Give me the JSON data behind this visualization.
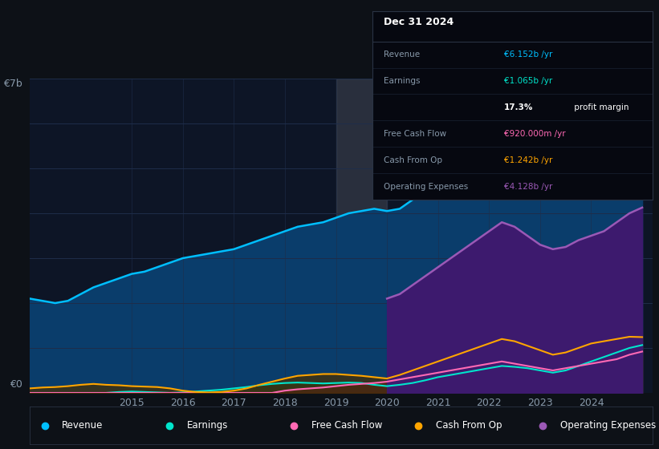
{
  "bg_color": "#0d1117",
  "plot_bg_color": "#0d1526",
  "grid_color": "#1e2d4a",
  "years": [
    2013.0,
    2013.25,
    2013.5,
    2013.75,
    2014.0,
    2014.25,
    2014.5,
    2014.75,
    2015.0,
    2015.25,
    2015.5,
    2015.75,
    2016.0,
    2016.25,
    2016.5,
    2016.75,
    2017.0,
    2017.25,
    2017.5,
    2017.75,
    2018.0,
    2018.25,
    2018.5,
    2018.75,
    2019.0,
    2019.25,
    2019.5,
    2019.75,
    2020.0,
    2020.25,
    2020.5,
    2020.75,
    2021.0,
    2021.25,
    2021.5,
    2021.75,
    2022.0,
    2022.25,
    2022.5,
    2022.75,
    2023.0,
    2023.25,
    2023.5,
    2023.75,
    2024.0,
    2024.25,
    2024.5,
    2024.75,
    2025.0
  ],
  "revenue": [
    2.1,
    2.05,
    2.0,
    2.05,
    2.2,
    2.35,
    2.45,
    2.55,
    2.65,
    2.7,
    2.8,
    2.9,
    3.0,
    3.05,
    3.1,
    3.15,
    3.2,
    3.3,
    3.4,
    3.5,
    3.6,
    3.7,
    3.75,
    3.8,
    3.9,
    4.0,
    4.05,
    4.1,
    4.05,
    4.1,
    4.3,
    4.5,
    4.7,
    4.9,
    5.1,
    5.3,
    5.6,
    5.8,
    5.75,
    5.5,
    5.3,
    5.2,
    5.25,
    5.4,
    5.5,
    5.7,
    5.9,
    6.1,
    6.152
  ],
  "earnings": [
    -0.05,
    -0.07,
    -0.08,
    -0.06,
    -0.04,
    -0.02,
    0.0,
    0.02,
    0.03,
    0.02,
    0.01,
    0.0,
    0.01,
    0.03,
    0.05,
    0.07,
    0.1,
    0.13,
    0.17,
    0.2,
    0.22,
    0.23,
    0.22,
    0.21,
    0.22,
    0.23,
    0.22,
    0.18,
    0.15,
    0.18,
    0.22,
    0.28,
    0.35,
    0.4,
    0.45,
    0.5,
    0.55,
    0.6,
    0.58,
    0.55,
    0.5,
    0.45,
    0.5,
    0.6,
    0.7,
    0.8,
    0.9,
    1.0,
    1.065
  ],
  "free_cash_flow": [
    0.0,
    0.0,
    0.0,
    0.0,
    0.0,
    0.0,
    0.0,
    0.0,
    0.0,
    0.0,
    0.0,
    0.0,
    0.0,
    0.0,
    0.0,
    0.0,
    0.0,
    0.0,
    0.0,
    0.0,
    0.05,
    0.08,
    0.1,
    0.12,
    0.15,
    0.18,
    0.2,
    0.22,
    0.25,
    0.3,
    0.35,
    0.4,
    0.45,
    0.5,
    0.55,
    0.6,
    0.65,
    0.7,
    0.65,
    0.6,
    0.55,
    0.5,
    0.55,
    0.6,
    0.65,
    0.7,
    0.75,
    0.85,
    0.92
  ],
  "cash_from_op": [
    0.1,
    0.12,
    0.13,
    0.15,
    0.18,
    0.2,
    0.18,
    0.17,
    0.15,
    0.14,
    0.13,
    0.1,
    0.05,
    0.02,
    0.01,
    0.02,
    0.05,
    0.1,
    0.18,
    0.25,
    0.32,
    0.38,
    0.4,
    0.42,
    0.42,
    0.4,
    0.38,
    0.35,
    0.32,
    0.4,
    0.5,
    0.6,
    0.7,
    0.8,
    0.9,
    1.0,
    1.1,
    1.2,
    1.15,
    1.05,
    0.95,
    0.85,
    0.9,
    1.0,
    1.1,
    1.15,
    1.2,
    1.25,
    1.242
  ],
  "op_expenses": [
    null,
    null,
    null,
    null,
    null,
    null,
    null,
    null,
    null,
    null,
    null,
    null,
    null,
    null,
    null,
    null,
    null,
    null,
    null,
    null,
    null,
    null,
    null,
    null,
    null,
    null,
    null,
    null,
    2.1,
    2.2,
    2.4,
    2.6,
    2.8,
    3.0,
    3.2,
    3.4,
    3.6,
    3.8,
    3.7,
    3.5,
    3.3,
    3.2,
    3.25,
    3.4,
    3.5,
    3.6,
    3.8,
    4.0,
    4.128
  ],
  "transition_start": 2019.0,
  "transition_end": 2020.0,
  "colors": {
    "revenue": "#00bfff",
    "earnings": "#00e5cc",
    "free_cash_flow": "#ff69b4",
    "cash_from_op": "#ffa500",
    "op_expenses": "#9b59b6",
    "revenue_fill": "#0a3d6b",
    "earnings_fill": "#0a4040",
    "free_cash_flow_fill": "#5a1040",
    "cash_from_op_fill": "#4a3000",
    "op_expenses_fill": "#3d1a6e"
  },
  "info_box": {
    "title": "Dec 31 2024",
    "rows": [
      {
        "label": "Revenue",
        "value": "€6.152b /yr",
        "value_color": "#00bfff",
        "bold_part": ""
      },
      {
        "label": "Earnings",
        "value": "€1.065b /yr",
        "value_color": "#00e5cc",
        "bold_part": ""
      },
      {
        "label": "",
        "value": "17.3% profit margin",
        "value_color": "#ffffff",
        "bold_part": "17.3%"
      },
      {
        "label": "Free Cash Flow",
        "value": "€920.000m /yr",
        "value_color": "#ff69b4",
        "bold_part": ""
      },
      {
        "label": "Cash From Op",
        "value": "€1.242b /yr",
        "value_color": "#ffa500",
        "bold_part": ""
      },
      {
        "label": "Operating Expenses",
        "value": "€4.128b /yr",
        "value_color": "#9b59b6",
        "bold_part": ""
      }
    ]
  },
  "legend": [
    {
      "label": "Revenue",
      "color": "#00bfff"
    },
    {
      "label": "Earnings",
      "color": "#00e5cc"
    },
    {
      "label": "Free Cash Flow",
      "color": "#ff69b4"
    },
    {
      "label": "Cash From Op",
      "color": "#ffa500"
    },
    {
      "label": "Operating Expenses",
      "color": "#9b59b6"
    }
  ],
  "xlim": [
    2013.0,
    2025.2
  ],
  "ylim": [
    0,
    7.0
  ],
  "xticks": [
    2015,
    2016,
    2017,
    2018,
    2019,
    2020,
    2021,
    2022,
    2023,
    2024
  ],
  "ytick_top_label": "€7b",
  "ytick_bottom_label": "€0"
}
